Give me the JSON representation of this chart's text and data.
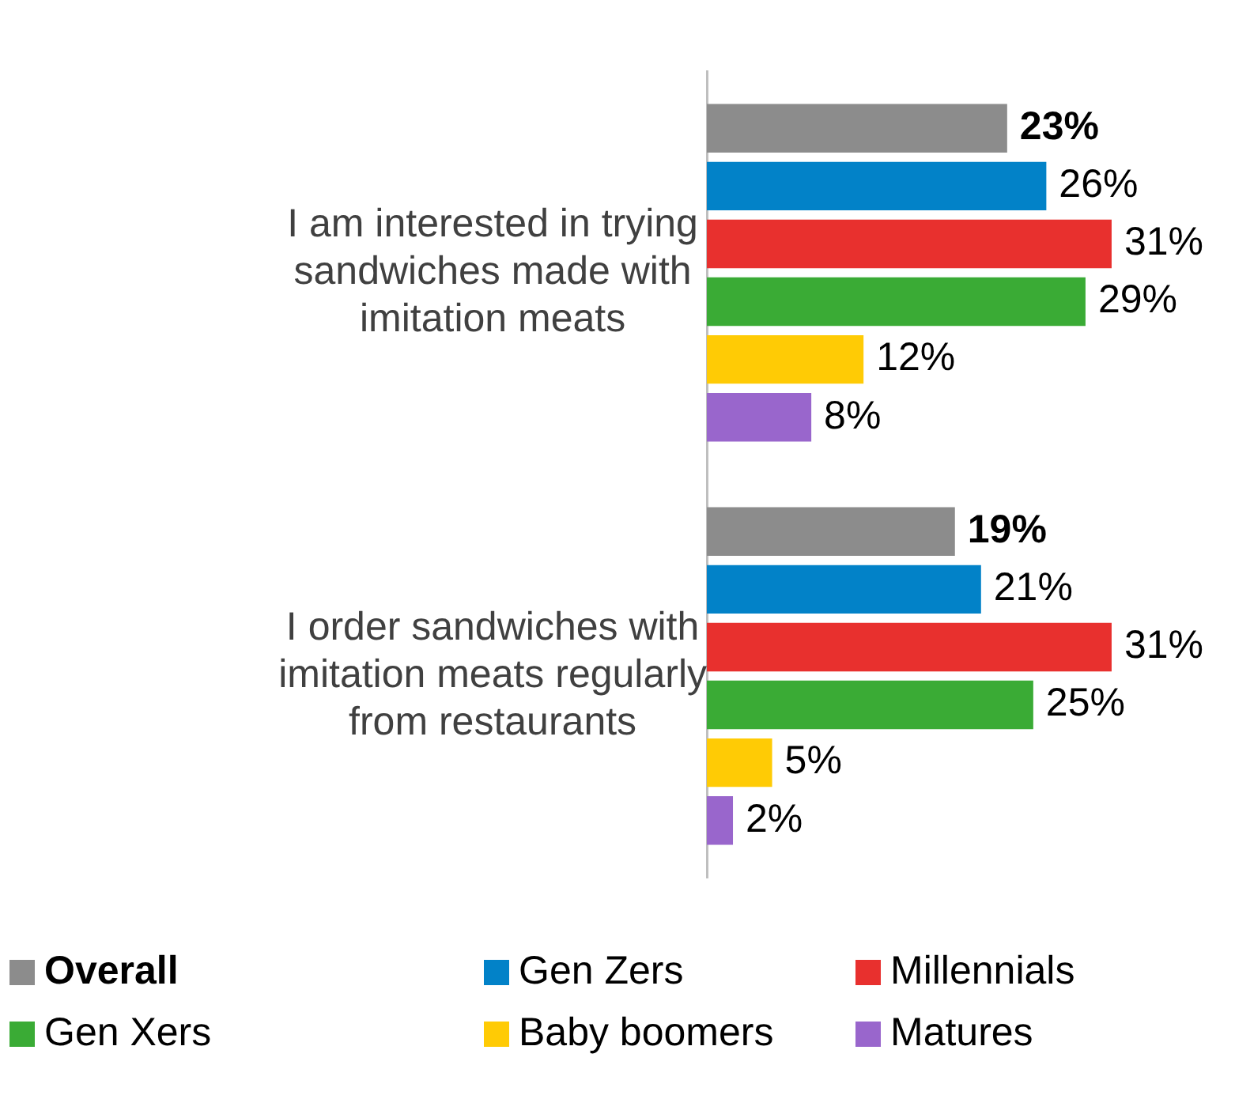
{
  "chart_data": {
    "type": "bar",
    "orientation": "horizontal",
    "categories": [
      "I am interested in trying sandwiches made with imitation meats",
      "I order sandwiches with imitation meats regularly from restaurants"
    ],
    "series": [
      {
        "name": "Overall",
        "color": "#8c8c8c",
        "values": [
          23,
          19
        ],
        "value_labels": [
          "23%",
          "19%"
        ]
      },
      {
        "name": "Gen Zers",
        "color": "#0282c8",
        "values": [
          26,
          21
        ],
        "value_labels": [
          "26%",
          "21%"
        ]
      },
      {
        "name": "Millennials",
        "color": "#e8302e",
        "values": [
          31,
          31
        ],
        "value_labels": [
          "31%",
          "31%"
        ]
      },
      {
        "name": "Gen Xers",
        "color": "#3aab35",
        "values": [
          29,
          25
        ],
        "value_labels": [
          "29%",
          "25%"
        ]
      },
      {
        "name": "Baby boomers",
        "color": "#ffcb05",
        "values": [
          12,
          5
        ],
        "value_labels": [
          "12%",
          "5%"
        ]
      },
      {
        "name": "Matures",
        "color": "#9966cc",
        "values": [
          8,
          2
        ],
        "value_labels": [
          "8%",
          "2%"
        ]
      }
    ],
    "grid": false,
    "legend": "bottom",
    "tick_labels": "y"
  }
}
